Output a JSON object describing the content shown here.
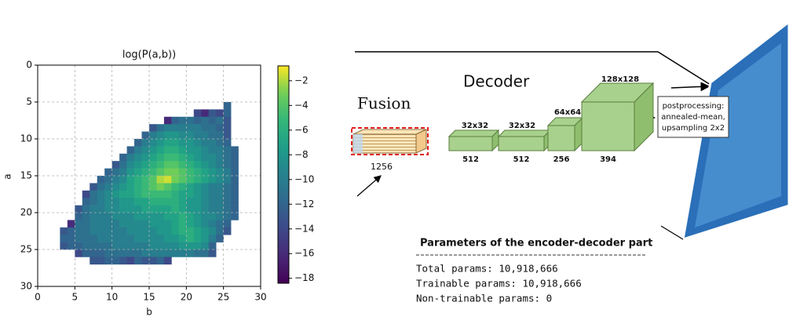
{
  "chart_data": {
    "type": "heatmap",
    "title": "log(P(a,b))",
    "x_label": "b",
    "y_label": "a",
    "xlim": [
      0,
      30
    ],
    "ylim": [
      30,
      0
    ],
    "xticks": [
      0,
      5,
      10,
      15,
      20,
      25,
      30
    ],
    "yticks": [
      0,
      5,
      10,
      15,
      20,
      25,
      30
    ],
    "grid": true,
    "x_bins": [
      3,
      4,
      5,
      6,
      7,
      8,
      9,
      10,
      11,
      12,
      13,
      14,
      15,
      16,
      17,
      18,
      19,
      20,
      21,
      22,
      23,
      24,
      25,
      26,
      27
    ],
    "y_bins": [
      5,
      6,
      7,
      8,
      9,
      10,
      11,
      12,
      13,
      14,
      15,
      16,
      17,
      18,
      19,
      20,
      21,
      22,
      23,
      24,
      25,
      26,
      27
    ],
    "z": [
      [
        null,
        null,
        null,
        null,
        null,
        null,
        null,
        null,
        null,
        null,
        null,
        null,
        null,
        null,
        null,
        null,
        null,
        null,
        null,
        null,
        null,
        null,
        -12,
        null
      ],
      [
        null,
        null,
        null,
        null,
        null,
        null,
        null,
        null,
        null,
        null,
        null,
        null,
        null,
        null,
        null,
        null,
        null,
        null,
        -14,
        -16,
        -13,
        -14,
        -12,
        null
      ],
      [
        null,
        null,
        null,
        null,
        null,
        null,
        null,
        null,
        null,
        null,
        null,
        null,
        null,
        null,
        -16,
        -12,
        -11,
        -11,
        -12,
        -11,
        -12,
        -11,
        -13,
        null
      ],
      [
        null,
        null,
        null,
        null,
        null,
        null,
        null,
        null,
        null,
        null,
        null,
        null,
        -13,
        -11,
        -10,
        -10,
        -10,
        -10,
        -10,
        -11,
        -11,
        -12,
        -13,
        null
      ],
      [
        null,
        null,
        null,
        null,
        null,
        null,
        null,
        null,
        null,
        null,
        null,
        -12,
        -10,
        -9,
        -8,
        -8,
        -9,
        -9,
        -10,
        -10,
        -11,
        -11,
        -13,
        null
      ],
      [
        null,
        null,
        null,
        null,
        null,
        null,
        null,
        null,
        null,
        null,
        -12,
        -10,
        -9,
        -8,
        -7,
        -7,
        -8,
        -8,
        -9,
        -10,
        -10,
        -11,
        -12,
        null
      ],
      [
        null,
        null,
        null,
        null,
        null,
        null,
        null,
        null,
        null,
        -12,
        -10,
        -9,
        -8,
        -7,
        -6,
        -6,
        -7,
        -8,
        -8,
        -9,
        -10,
        -10,
        -11,
        -12
      ],
      [
        null,
        null,
        null,
        null,
        null,
        null,
        null,
        null,
        -12,
        -10,
        -9,
        -8,
        -7,
        -6,
        -5,
        -5,
        -6,
        -7,
        -8,
        -9,
        -9,
        -10,
        -11,
        -12
      ],
      [
        null,
        null,
        null,
        null,
        null,
        null,
        null,
        -13,
        -11,
        -9,
        -8,
        -7,
        -6,
        -5,
        -4,
        -4,
        -5,
        -6,
        -7,
        -8,
        -9,
        -10,
        -11,
        -12
      ],
      [
        null,
        null,
        null,
        null,
        null,
        null,
        -12,
        -11,
        -10,
        -8,
        -7,
        -6,
        -5,
        -4,
        -3,
        -3,
        -4,
        -5,
        -6,
        -7,
        -8,
        -9,
        -10,
        -12
      ],
      [
        null,
        null,
        null,
        null,
        null,
        -12,
        -11,
        -10,
        -9,
        -7,
        -6,
        -5,
        -4,
        -2,
        -1.5,
        -3,
        -4,
        -5,
        -6,
        -7,
        -8,
        -9,
        -10,
        -12
      ],
      [
        null,
        null,
        null,
        null,
        -13,
        -11,
        -10,
        -9,
        -8,
        -7,
        -6,
        -5,
        -4,
        -3,
        -4,
        -5,
        -6,
        -7,
        -8,
        -9,
        -10,
        -10,
        -11,
        -12
      ],
      [
        null,
        null,
        null,
        -14,
        -11,
        -10,
        -9,
        -8,
        -7,
        -7,
        -6,
        -5,
        -5,
        -5,
        -5,
        -6,
        -7,
        -7,
        -8,
        -9,
        -10,
        -10,
        -11,
        -12
      ],
      [
        null,
        null,
        null,
        -12,
        -11,
        -10,
        -9,
        -9,
        -8,
        -8,
        -7,
        -7,
        -6,
        -6,
        -6,
        -6,
        -7,
        -8,
        -8,
        -9,
        -10,
        -10,
        -11,
        -12
      ],
      [
        null,
        null,
        -13,
        -11,
        -10,
        -10,
        -9,
        -9,
        -8,
        -8,
        -8,
        -7,
        -7,
        -7,
        -7,
        -6,
        -7,
        -8,
        -8,
        -9,
        -10,
        -10,
        -11,
        -12
      ],
      [
        null,
        null,
        -12,
        -11,
        -10,
        -10,
        -10,
        -9,
        -9,
        -9,
        -8,
        -8,
        -8,
        -8,
        -7,
        -7,
        -6,
        -7,
        -8,
        -9,
        -9,
        -10,
        -11,
        -12
      ],
      [
        null,
        -16,
        -11,
        -11,
        -10,
        -10,
        -10,
        -10,
        -9,
        -9,
        -9,
        -9,
        -8,
        -8,
        -8,
        -7,
        -6,
        -7,
        -8,
        -9,
        -10,
        -11,
        -12,
        null
      ],
      [
        -13,
        -12,
        -11,
        -11,
        -10,
        -10,
        -10,
        -10,
        -10,
        -9,
        -9,
        -9,
        -9,
        -8,
        -8,
        -7,
        -6,
        -6,
        -7,
        -8,
        -9,
        -11,
        -13,
        null
      ],
      [
        -12,
        -12,
        -11,
        -11,
        -11,
        -10,
        -10,
        -10,
        -10,
        -10,
        -9,
        -9,
        -9,
        -9,
        -8,
        -8,
        -7,
        -6,
        -7,
        -8,
        -10,
        -12,
        null,
        null
      ],
      [
        -13,
        -12,
        -12,
        -11,
        -11,
        -11,
        -11,
        -10,
        -10,
        -10,
        -10,
        -10,
        -9,
        -9,
        -9,
        -9,
        -8,
        -8,
        -8,
        -9,
        -12,
        null,
        null,
        null
      ],
      [
        null,
        null,
        -14,
        -12,
        -12,
        -12,
        -11,
        -11,
        -11,
        -11,
        -11,
        -10,
        -10,
        -10,
        -10,
        -10,
        -10,
        -10,
        -11,
        -11,
        -13,
        null,
        null,
        null
      ],
      [
        null,
        null,
        null,
        null,
        -13,
        -13,
        -12,
        -12,
        -13,
        -14,
        -12,
        -13,
        -13,
        -12,
        -14,
        null,
        null,
        null,
        null,
        null,
        null,
        null,
        null,
        null
      ]
    ],
    "colormap": "viridis",
    "clim": [
      -18.4,
      -0.8
    ],
    "cticks": [
      {
        "value": -2,
        "label": "−2"
      },
      {
        "value": -4,
        "label": "−4"
      },
      {
        "value": -6,
        "label": "−6"
      },
      {
        "value": -8,
        "label": "−8"
      },
      {
        "value": -10,
        "label": "−10"
      },
      {
        "value": -12,
        "label": "−12"
      },
      {
        "value": -14,
        "label": "−14"
      },
      {
        "value": -16,
        "label": "−16"
      },
      {
        "value": -18,
        "label": "−18"
      }
    ]
  },
  "diagram": {
    "fusion": {
      "title": "Fusion",
      "size": "1256"
    },
    "decoder": {
      "title": "Decoder",
      "layers": [
        {
          "resolution": "32x32",
          "channels": "512"
        },
        {
          "resolution": "32x32",
          "channels": "512"
        },
        {
          "resolution": "64x64",
          "channels": "256"
        },
        {
          "resolution": "128x128",
          "channels": "394"
        }
      ]
    },
    "postprocessing": [
      "postprocessing:",
      "annealed-mean,",
      "upsampling 2x2"
    ],
    "params": {
      "title": "Parameters of the encoder-decoder part",
      "lines": [
        "Total params: 10,918,666",
        "Trainable params: 10,918,666",
        "Non-trainable params: 0"
      ]
    }
  }
}
